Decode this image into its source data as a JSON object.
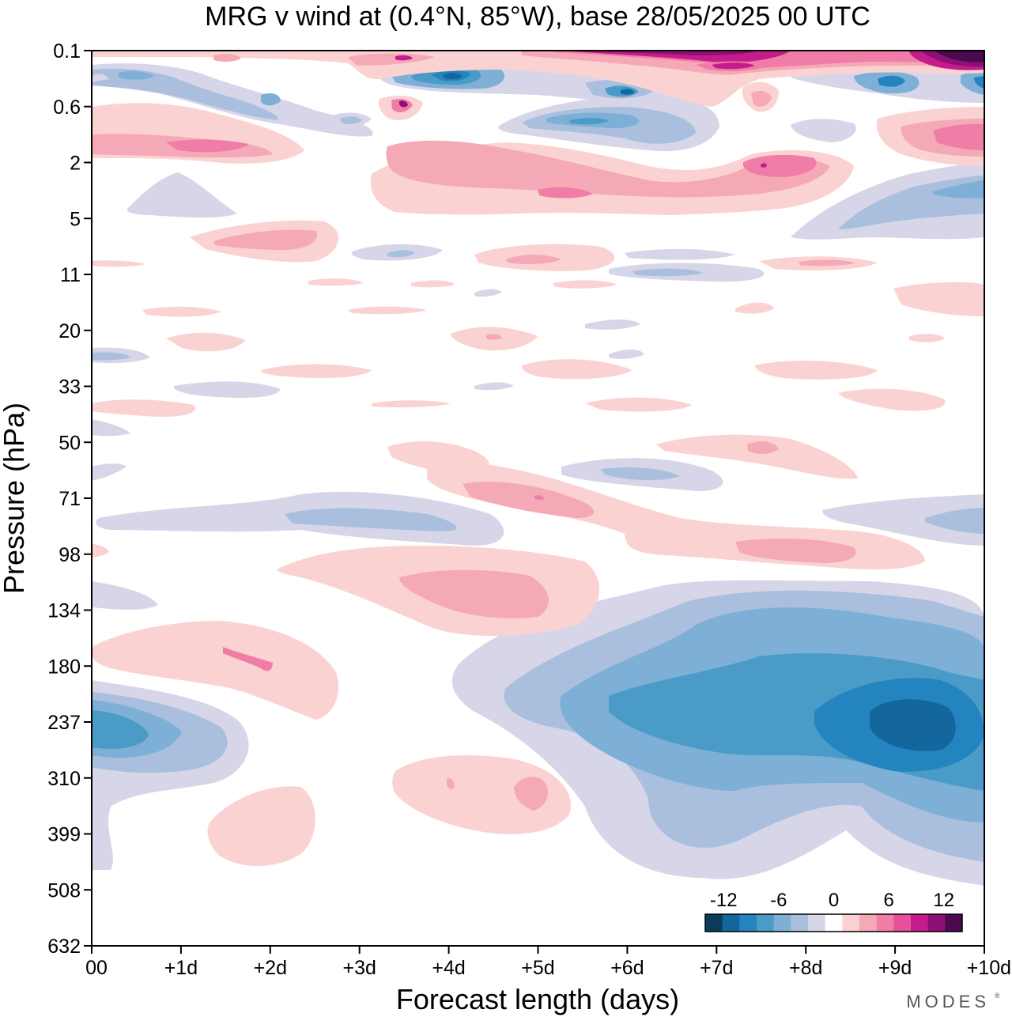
{
  "chart_data": {
    "type": "heatmap",
    "title": "MRG v wind at (0.4°N, 85°W),  base 28/05/2025  00 UTC",
    "xlabel": "Forecast length (days)",
    "ylabel": "Pressure (hPa)",
    "x_ticks": [
      "00",
      "+1d",
      "+2d",
      "+3d",
      "+4d",
      "+5d",
      "+6d",
      "+7d",
      "+8d",
      "+9d",
      "+10d"
    ],
    "y_ticks": [
      "0.1",
      "0.6",
      "2",
      "5",
      "11",
      "20",
      "33",
      "50",
      "71",
      "98",
      "134",
      "180",
      "237",
      "310",
      "399",
      "508",
      "632"
    ],
    "x_range_days": [
      0,
      10
    ],
    "y_range_hpa": [
      0.1,
      632
    ],
    "colorbar": {
      "labels": [
        "-12",
        "-6",
        "0",
        "6",
        "12"
      ],
      "label_values": [
        -12,
        -6,
        0,
        6,
        12
      ],
      "levels": [
        -14,
        -12,
        -10,
        -8,
        -6,
        -4,
        -2,
        0,
        2,
        4,
        6,
        8,
        10,
        12,
        14
      ],
      "colors": [
        "#0b3c5d",
        "#13679c",
        "#2384bf",
        "#4b9bc9",
        "#7eafd6",
        "#a9bfdd",
        "#d7d6e8",
        "#ffffff",
        "#fbd2d2",
        "#f5a9b7",
        "#f07da8",
        "#e8509b",
        "#c41c8a",
        "#8e1075",
        "#4b0a4e"
      ]
    },
    "features": [
      {
        "name": "strong negative core",
        "day": 9.3,
        "hpa": 237,
        "v_min": -14
      },
      {
        "name": "negative core",
        "day": 0.3,
        "hpa": 237,
        "v_min": -9
      },
      {
        "name": "positive band",
        "day": 3.8,
        "hpa": 134,
        "v_max": 5
      },
      {
        "name": "positive band",
        "day": 5.0,
        "hpa": 71,
        "v_max": 6
      },
      {
        "name": "positive band",
        "day": 5.0,
        "hpa": 3,
        "v_max": 6
      },
      {
        "name": "negative upper",
        "day": 4.0,
        "hpa": 0.25,
        "v_min": -12
      },
      {
        "name": "positive upper",
        "day": 9.5,
        "hpa": 0.15,
        "v_max": 14
      }
    ]
  },
  "branding": {
    "logo": "MODES"
  }
}
